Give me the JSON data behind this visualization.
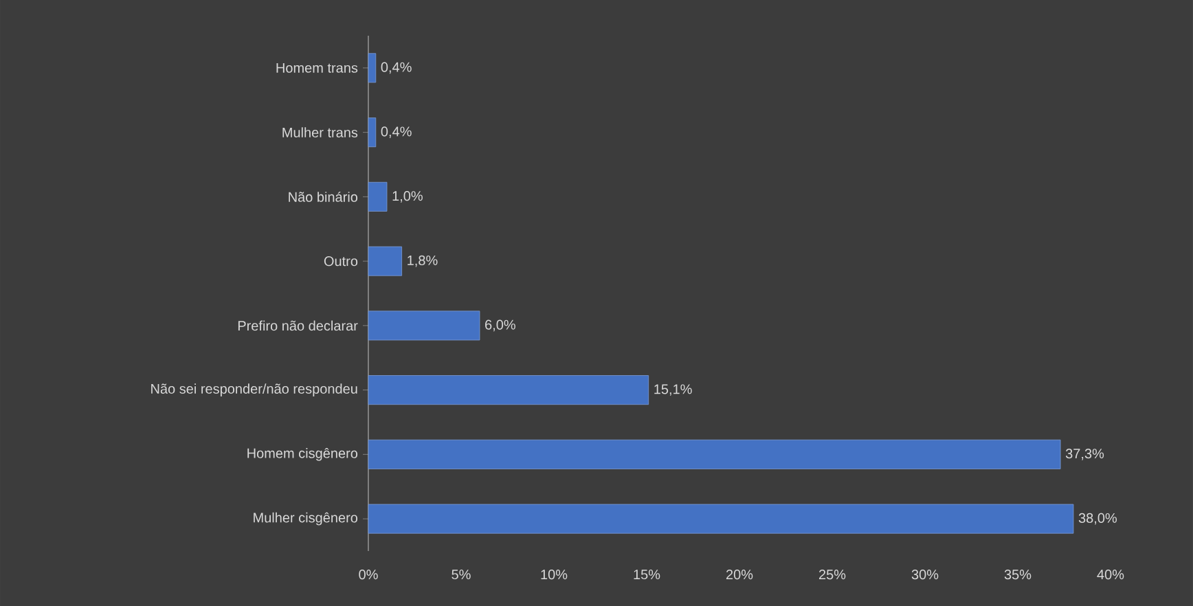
{
  "chart_data": {
    "type": "bar",
    "orientation": "horizontal",
    "categories": [
      "Homem trans",
      "Mulher trans",
      "Não binário",
      "Outro",
      "Prefiro não declarar",
      "Não sei responder/não respondeu",
      "Homem cisgênero",
      "Mulher cisgênero"
    ],
    "values": [
      0.4,
      0.4,
      1.0,
      1.8,
      6.0,
      15.1,
      37.3,
      38.0
    ],
    "value_labels": [
      "0,4%",
      "0,4%",
      "1,0%",
      "1,8%",
      "6,0%",
      "15,1%",
      "37,3%",
      "38,0%"
    ],
    "color": "#4472c4",
    "xlim": [
      0,
      40
    ],
    "xticks": [
      {
        "value": 0,
        "label": "0%"
      },
      {
        "value": 5,
        "label": "5%"
      },
      {
        "value": 10,
        "label": "10%"
      },
      {
        "value": 15,
        "label": "15%"
      },
      {
        "value": 20,
        "label": "20%"
      },
      {
        "value": 25,
        "label": "25%"
      },
      {
        "value": 30,
        "label": "30%"
      },
      {
        "value": 35,
        "label": "35%"
      },
      {
        "value": 40,
        "label": "40%"
      }
    ],
    "grid": false
  }
}
